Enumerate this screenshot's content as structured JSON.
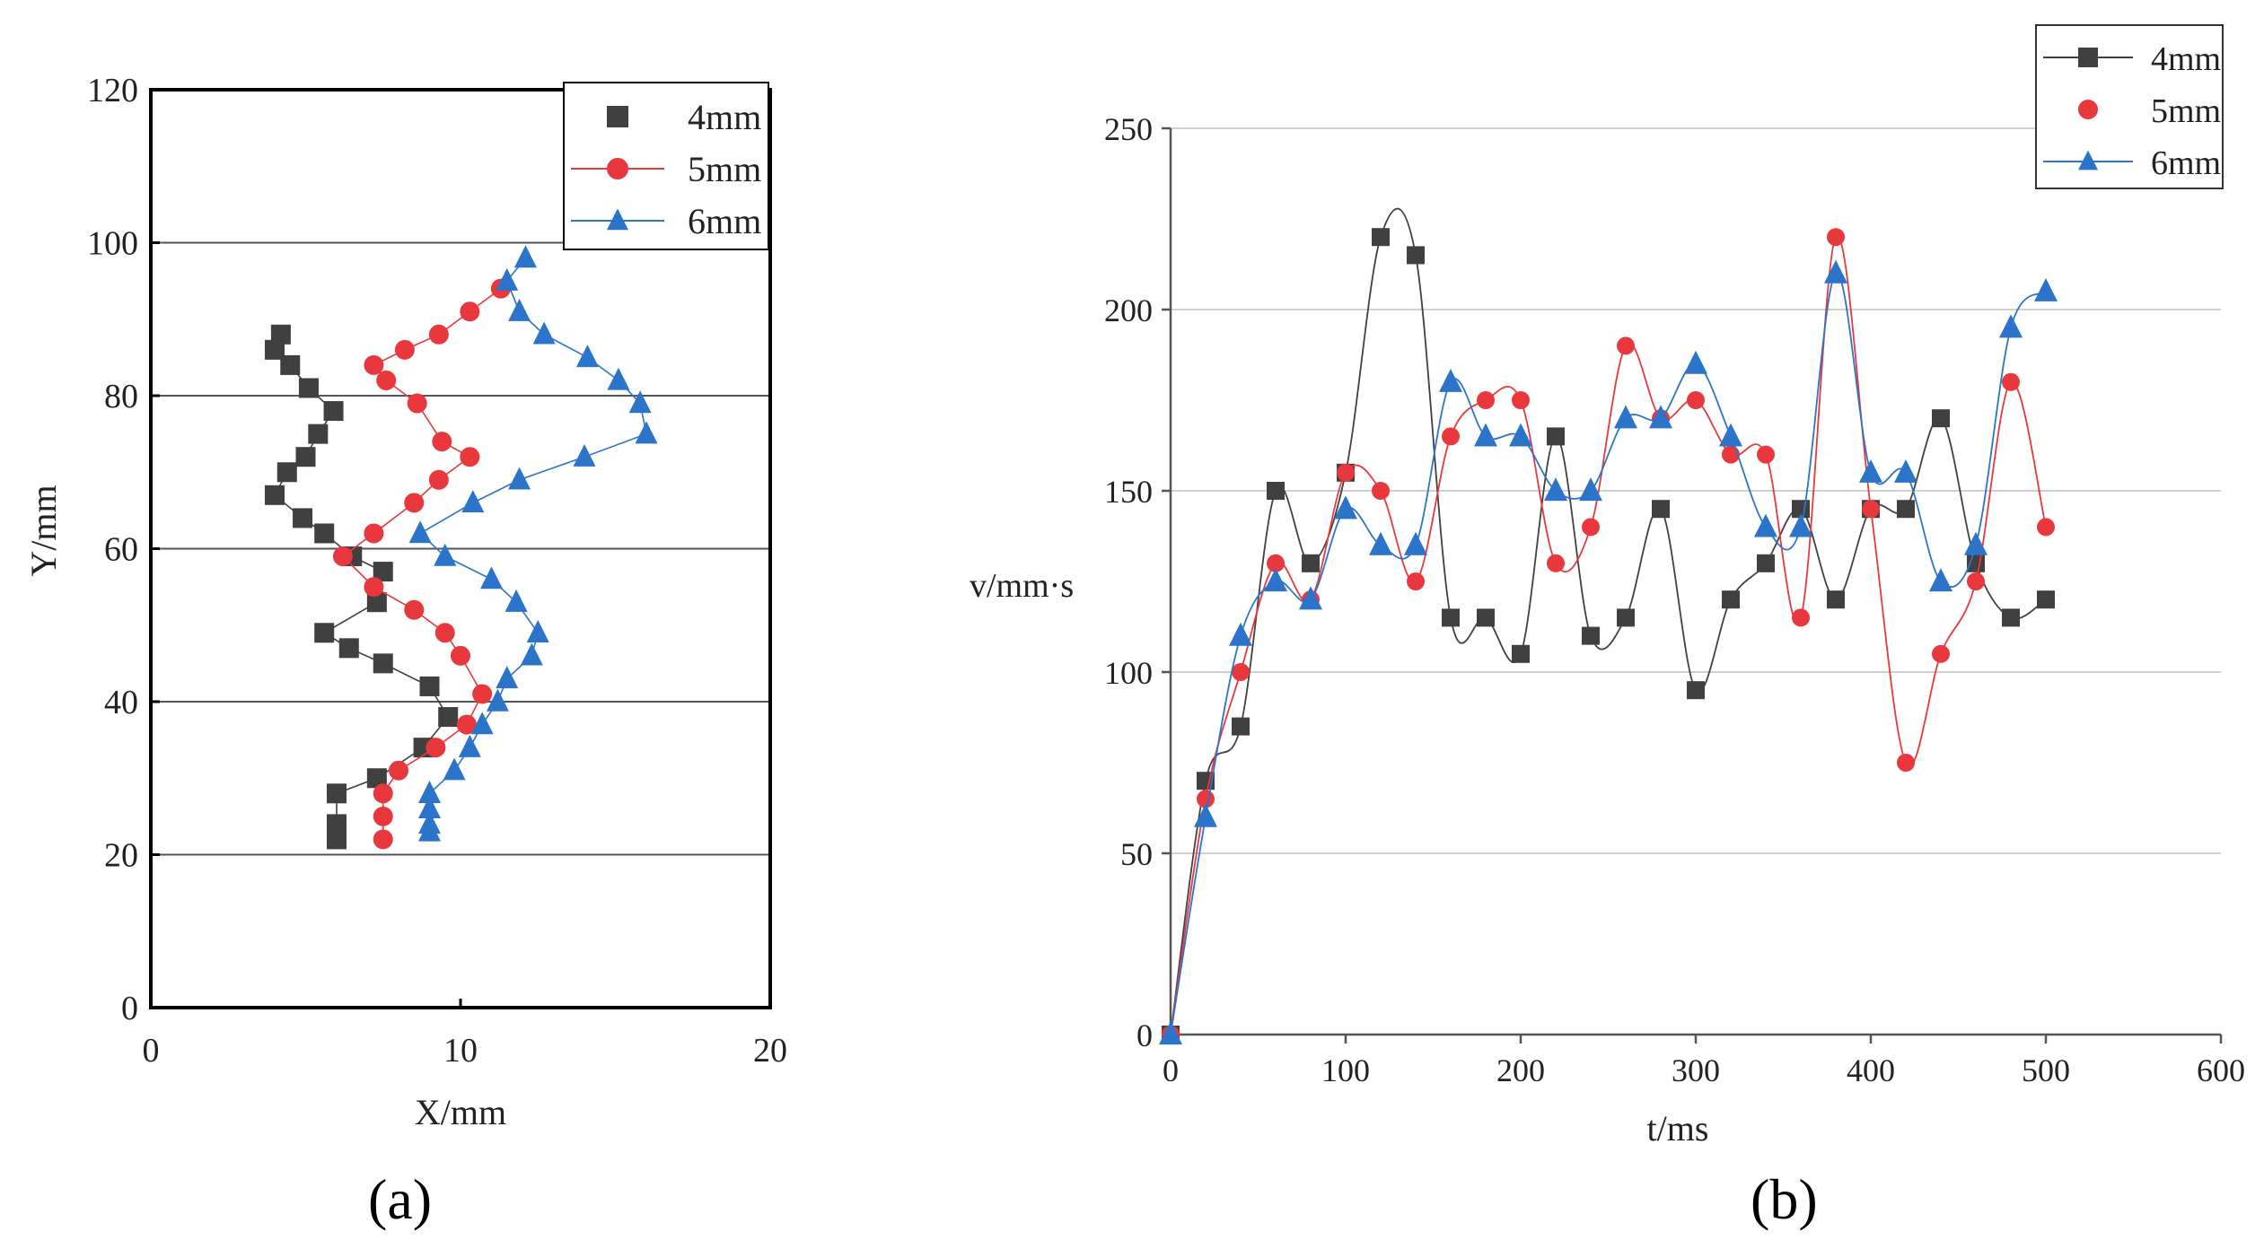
{
  "chart_data": [
    {
      "type": "scatter",
      "panel_label": "(a)",
      "xlabel": "X/mm",
      "ylabel": "Y/mm",
      "xlim": [
        0,
        20
      ],
      "ylim": [
        0,
        120
      ],
      "xticks": [
        "0",
        "10",
        "20"
      ],
      "yticks": [
        "0",
        "20",
        "40",
        "60",
        "80",
        "100",
        "120"
      ],
      "grid": "horizontal",
      "legend_position": "top-right",
      "series": [
        {
          "name": "4mm",
          "color": "#404040",
          "marker": "square",
          "x": [
            6.0,
            6.0,
            6.0,
            7.3,
            8.8,
            9.6,
            9.0,
            7.5,
            6.4,
            5.6,
            7.3,
            7.5,
            6.5,
            5.6,
            4.9,
            4.0,
            4.4,
            5.0,
            5.4,
            5.9,
            5.1,
            4.5,
            4.0,
            4.2
          ],
          "y": [
            22,
            24,
            28,
            30,
            34,
            38,
            42,
            45,
            47,
            49,
            53,
            57,
            59,
            62,
            64,
            67,
            70,
            72,
            75,
            78,
            81,
            84,
            86,
            88
          ]
        },
        {
          "name": "5mm",
          "color": "#e8383d",
          "marker": "circle",
          "x": [
            7.5,
            7.5,
            7.5,
            8.0,
            9.2,
            10.2,
            10.7,
            10.0,
            9.5,
            8.5,
            7.2,
            6.2,
            7.2,
            8.5,
            9.3,
            10.3,
            9.4,
            8.6,
            7.6,
            7.2,
            8.2,
            9.3,
            10.3,
            11.3
          ],
          "y": [
            22,
            25,
            28,
            31,
            34,
            37,
            41,
            46,
            49,
            52,
            55,
            59,
            62,
            66,
            69,
            72,
            74,
            79,
            82,
            84,
            86,
            88,
            91,
            94
          ]
        },
        {
          "name": "6mm",
          "color": "#2b74c9",
          "marker": "triangle",
          "x": [
            9.0,
            9.0,
            9.0,
            9.0,
            9.8,
            10.3,
            10.7,
            11.2,
            11.5,
            12.3,
            12.5,
            11.8,
            11.0,
            9.5,
            8.7,
            10.4,
            11.9,
            14.0,
            16.0,
            15.8,
            15.1,
            14.1,
            12.7,
            11.9,
            11.5,
            12.1
          ],
          "y": [
            23,
            24,
            26,
            28,
            31,
            34,
            37,
            40,
            43,
            46,
            49,
            53,
            56,
            59,
            62,
            66,
            69,
            72,
            75,
            79,
            82,
            85,
            88,
            91,
            95,
            98
          ]
        }
      ]
    },
    {
      "type": "line",
      "panel_label": "(b)",
      "xlabel": "t/ms",
      "ylabel": "v/mm·s",
      "xlim": [
        0,
        600
      ],
      "ylim": [
        0,
        250
      ],
      "xticks": [
        "0",
        "100",
        "200",
        "300",
        "400",
        "500",
        "600"
      ],
      "yticks": [
        "0",
        "50",
        "100",
        "150",
        "200",
        "250"
      ],
      "grid": "horizontal",
      "legend_position": "top-right",
      "x": [
        0,
        20,
        40,
        60,
        80,
        100,
        120,
        140,
        160,
        180,
        200,
        220,
        240,
        260,
        280,
        300,
        320,
        340,
        360,
        380,
        400,
        420,
        440,
        460,
        480,
        500
      ],
      "series": [
        {
          "name": "4mm",
          "color": "#404040",
          "marker": "square",
          "values": [
            0,
            70,
            85,
            150,
            130,
            155,
            220,
            215,
            115,
            115,
            105,
            165,
            110,
            115,
            145,
            95,
            120,
            130,
            145,
            120,
            145,
            145,
            170,
            130,
            115,
            120
          ]
        },
        {
          "name": "5mm",
          "color": "#e8383d",
          "marker": "circle",
          "values": [
            0,
            65,
            100,
            130,
            120,
            155,
            150,
            125,
            165,
            175,
            175,
            130,
            140,
            190,
            170,
            175,
            160,
            160,
            115,
            220,
            145,
            75,
            105,
            125,
            180,
            140
          ]
        },
        {
          "name": "6mm",
          "color": "#2b74c9",
          "marker": "triangle",
          "values": [
            0,
            60,
            110,
            125,
            120,
            145,
            135,
            135,
            180,
            165,
            165,
            150,
            150,
            170,
            170,
            185,
            165,
            140,
            140,
            210,
            155,
            155,
            125,
            135,
            195,
            205
          ]
        }
      ]
    }
  ]
}
